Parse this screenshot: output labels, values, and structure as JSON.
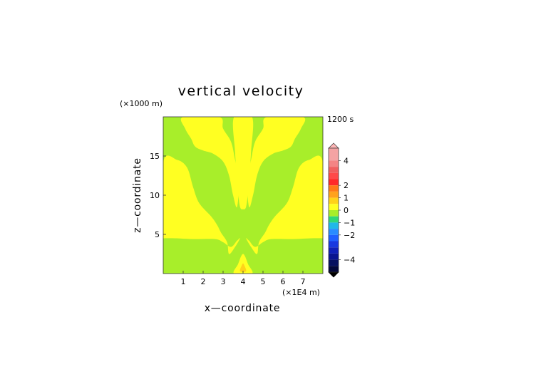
{
  "chart_data": {
    "type": "heatmap",
    "title": "vertical velocity",
    "time_label": "1200 s",
    "xlabel": "x—coordinate",
    "ylabel": "z—coordinate",
    "x_unit": "(×1E4 m)",
    "y_unit": "(×1000 m)",
    "xlim": [
      0,
      8
    ],
    "ylim": [
      0,
      20
    ],
    "x_ticks": [
      1,
      2,
      3,
      4,
      5,
      6,
      7
    ],
    "y_ticks": [
      5,
      10,
      15
    ],
    "colorbar": {
      "tick_labels": [
        {
          "value": 4,
          "label": "4"
        },
        {
          "value": 2,
          "label": "2"
        },
        {
          "value": 1,
          "label": "1"
        },
        {
          "value": 0,
          "label": "0"
        },
        {
          "value": -1,
          "label": "−1"
        },
        {
          "value": -2,
          "label": "−2"
        },
        {
          "value": -4,
          "label": "−4"
        }
      ],
      "levels": [
        {
          "from": 4,
          "to": 5,
          "color": "#f4a3a3"
        },
        {
          "from": 3.5,
          "to": 4,
          "color": "#f48484"
        },
        {
          "from": 3,
          "to": 3.5,
          "color": "#f06060"
        },
        {
          "from": 2.5,
          "to": 3,
          "color": "#ff4a4a"
        },
        {
          "from": 2,
          "to": 2.5,
          "color": "#ff2a2a"
        },
        {
          "from": 1.5,
          "to": 2,
          "color": "#ff7a18"
        },
        {
          "from": 1,
          "to": 1.5,
          "color": "#ffa21c"
        },
        {
          "from": 0.5,
          "to": 1,
          "color": "#ffd21a"
        },
        {
          "from": 0,
          "to": 0.5,
          "color": "#ffff22"
        },
        {
          "from": -0.5,
          "to": 0,
          "color": "#a8ee2a"
        },
        {
          "from": -1,
          "to": -0.5,
          "color": "#30d878"
        },
        {
          "from": -1.5,
          "to": -1,
          "color": "#20b8e8"
        },
        {
          "from": -2,
          "to": -1.5,
          "color": "#2a8cff"
        },
        {
          "from": -2.5,
          "to": -2,
          "color": "#2060ff"
        },
        {
          "from": -3,
          "to": -2.5,
          "color": "#1838e0"
        },
        {
          "from": -3.5,
          "to": -3,
          "color": "#1020b8"
        },
        {
          "from": -4,
          "to": -3.5,
          "color": "#0a1490"
        },
        {
          "from": -4.5,
          "to": -4,
          "color": "#061060"
        },
        {
          "from": -5,
          "to": -4.5,
          "color": "#03083a"
        }
      ],
      "extend_max_color": "#ffb6b6",
      "extend_min_color": "#000000"
    },
    "field_colors": {
      "background": "#a8ee2a",
      "positive": "#ffff22",
      "stronger_positive": "#ffd21a"
    },
    "positive_regions": [
      {
        "name": "left-plume",
        "x": [
          0.0,
          0.0,
          0.7,
          1.2,
          1.5,
          1.8,
          2.4,
          2.7,
          2.9,
          3.2,
          3.3,
          3.6,
          3.85,
          3.7,
          3.4,
          3.0,
          2.6,
          1.5,
          0.6,
          0.0
        ],
        "z": [
          4.5,
          14.2,
          14.5,
          13.5,
          11.0,
          9.0,
          7.3,
          6.2,
          5.2,
          4.0,
          2.5,
          3.4,
          4.5,
          4.2,
          3.4,
          4.0,
          4.4,
          4.4,
          4.5,
          4.5
        ]
      },
      {
        "name": "right-plume",
        "x": [
          8.0,
          8.0,
          7.3,
          6.8,
          6.5,
          6.2,
          5.6,
          5.3,
          5.1,
          4.8,
          4.7,
          4.4,
          4.15,
          4.3,
          4.6,
          5.0,
          5.4,
          6.5,
          7.4,
          8.0
        ],
        "z": [
          4.5,
          14.2,
          14.5,
          13.5,
          11.0,
          9.0,
          7.3,
          6.2,
          5.2,
          4.0,
          2.5,
          3.4,
          4.5,
          4.2,
          3.4,
          4.0,
          4.4,
          4.4,
          4.5,
          4.5
        ]
      },
      {
        "name": "top-left-arm",
        "x": [
          1.0,
          1.1,
          1.4,
          1.6,
          2.0,
          2.5,
          3.0,
          3.3,
          3.5,
          3.7,
          3.8,
          3.6,
          3.4,
          3.0,
          2.8
        ],
        "z": [
          20.0,
          18.5,
          17.2,
          16.2,
          15.7,
          15.3,
          14.3,
          12.5,
          10.0,
          8.5,
          12.0,
          14.5,
          16.8,
          18.5,
          20.0
        ]
      },
      {
        "name": "top-right-arm",
        "x": [
          7.0,
          6.9,
          6.6,
          6.4,
          6.0,
          5.5,
          5.0,
          4.7,
          4.5,
          4.3,
          4.2,
          4.4,
          4.6,
          5.0,
          5.2
        ],
        "z": [
          20.0,
          18.5,
          17.2,
          16.2,
          15.7,
          15.3,
          14.3,
          12.5,
          10.0,
          8.5,
          12.0,
          14.5,
          16.8,
          18.5,
          20.0
        ]
      },
      {
        "name": "center-column",
        "x": [
          3.55,
          3.6,
          3.75,
          3.85,
          4.0,
          4.15,
          4.25,
          4.4,
          4.45
        ],
        "z": [
          20.0,
          15.5,
          10.5,
          8.5,
          8.2,
          8.5,
          10.5,
          15.5,
          20.0
        ]
      },
      {
        "name": "bottom-spike",
        "x": [
          3.55,
          3.75,
          3.9,
          4.0,
          4.1,
          4.25,
          4.45
        ],
        "z": [
          0.0,
          1.2,
          2.2,
          2.5,
          2.2,
          1.2,
          0.0
        ]
      }
    ],
    "stronger_regions": [
      {
        "name": "bottom-core",
        "x": [
          3.85,
          3.93,
          4.0,
          4.07,
          4.15
        ],
        "z": [
          0.3,
          1.0,
          1.3,
          1.0,
          0.3
        ]
      }
    ]
  }
}
